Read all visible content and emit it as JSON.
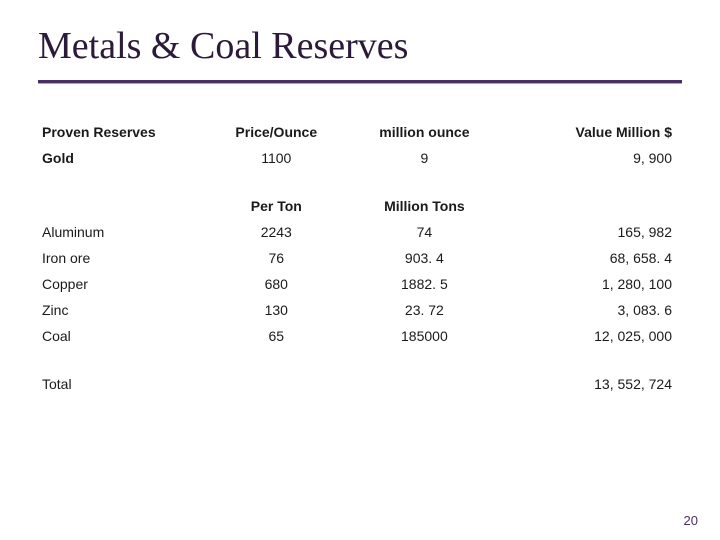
{
  "title": "Metals & Coal Reserves",
  "page_number": "20",
  "headers_section1": {
    "label": "Proven Reserves",
    "price": "Price/Ounce",
    "qty": "million ounce",
    "value": "Value Million $"
  },
  "section1_rows": [
    {
      "label": "Gold",
      "price": "1100",
      "qty": "9",
      "value": "9, 900"
    }
  ],
  "headers_section2": {
    "price": "Per Ton",
    "qty": "Million Tons"
  },
  "section2_rows": [
    {
      "label": "Aluminum",
      "price": "2243",
      "qty": "74",
      "value": "165, 982"
    },
    {
      "label": "Iron ore",
      "price": "76",
      "qty": "903. 4",
      "value": "68, 658. 4"
    },
    {
      "label": "Copper",
      "price": "680",
      "qty": "1882. 5",
      "value": "1, 280, 100"
    },
    {
      "label": "Zinc",
      "price": "130",
      "qty": "23. 72",
      "value": "3, 083. 6"
    },
    {
      "label": "Coal",
      "price": "65",
      "qty": "185000",
      "value": "12, 025, 000"
    }
  ],
  "total": {
    "label": "Total",
    "value": "13, 552, 724"
  },
  "styling": {
    "title_color": "#2b1a3a",
    "underline_color": "#4a2f63",
    "accent_color": "#c9a85f",
    "background_color": "#ffffff",
    "title_fontsize": 38,
    "body_fontsize": 14
  }
}
